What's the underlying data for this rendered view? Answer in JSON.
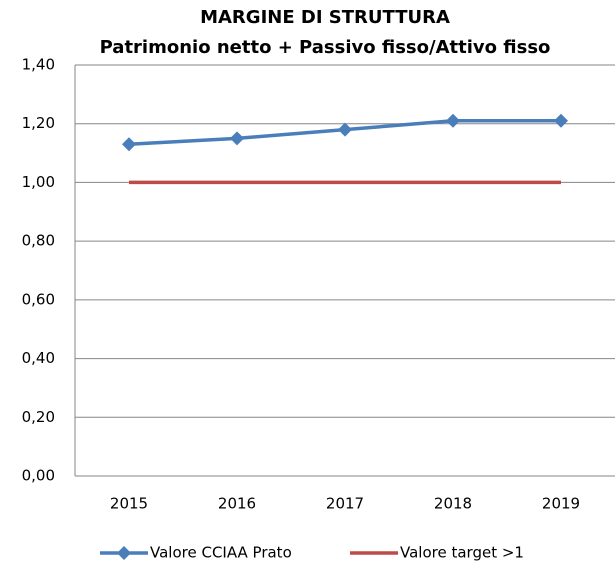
{
  "chart_data": {
    "type": "line",
    "title": "MARGINE DI STRUTTURA",
    "subtitle": "Patrimonio netto + Passivo fisso/Attivo fisso",
    "categories": [
      "2015",
      "2016",
      "2017",
      "2018",
      "2019"
    ],
    "series": [
      {
        "name": "Valore CCIAA Prato",
        "color": "#4a7ebb",
        "marker": "diamond",
        "values": [
          1.13,
          1.15,
          1.18,
          1.21,
          1.21
        ]
      },
      {
        "name": "Valore target >1",
        "color": "#be4b48",
        "values": [
          1,
          1,
          1,
          1,
          1
        ]
      }
    ],
    "ylim": [
      0,
      1.4
    ],
    "yticks": [
      {
        "value": 0,
        "label": "0,00"
      },
      {
        "value": 0.2,
        "label": "0,20"
      },
      {
        "value": 0.4,
        "label": "0,40"
      },
      {
        "value": 0.6,
        "label": "0,60"
      },
      {
        "value": 0.8,
        "label": "0,80"
      },
      {
        "value": 1,
        "label": "1,00"
      },
      {
        "value": 1.2,
        "label": "1,20"
      },
      {
        "value": 1.4,
        "label": "1,40"
      }
    ],
    "grid": true,
    "legend": "bottom"
  }
}
